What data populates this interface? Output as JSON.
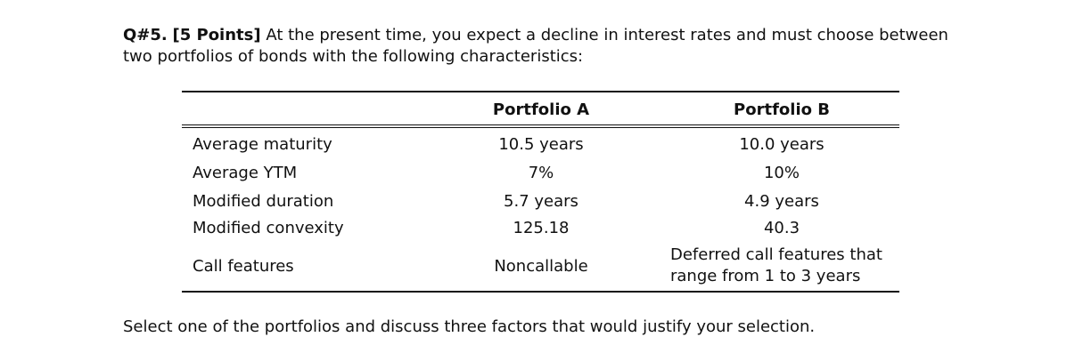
{
  "question": {
    "number": "Q#5.",
    "points": "[5 Points]",
    "text": "At the present time, you expect a decline in interest rates and must choose between two portfolios of bonds with the following characteristics:"
  },
  "table": {
    "headers": [
      "",
      "Portfolio A",
      "Portfolio B"
    ],
    "rows": [
      {
        "label": "Average maturity",
        "a": "10.5 years",
        "b": "10.0 years"
      },
      {
        "label": "Average YTM",
        "a": "7%",
        "b": "10%"
      },
      {
        "label": "Modified duration",
        "a": "5.7 years",
        "b": "4.9 years"
      },
      {
        "label": "Modified convexity",
        "a": "125.18",
        "b": "40.3"
      },
      {
        "label": "Call features",
        "a": "Noncallable",
        "b_line1": "Deferred call features that",
        "b_line2": "range from 1 to 3 years"
      }
    ]
  },
  "closing": "Select one of the portfolios and discuss three factors that would justify your selection."
}
